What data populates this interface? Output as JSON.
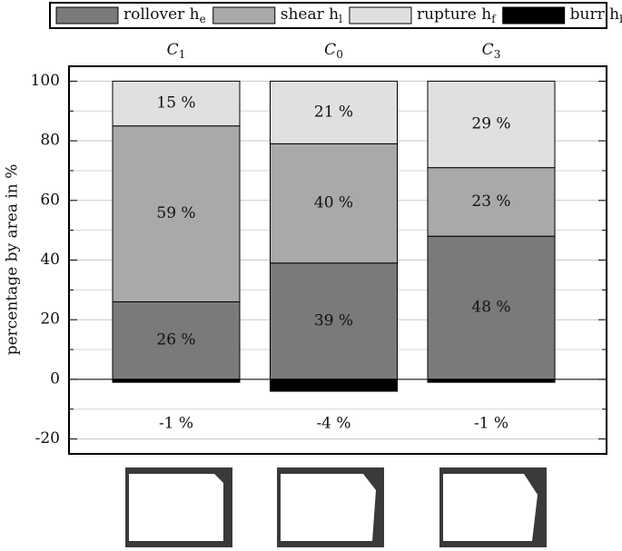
{
  "chart_data": {
    "type": "stacked-bar",
    "categories": [
      "C1",
      "C0",
      "C3"
    ],
    "ylabel": "percentage by area in %",
    "ylim": [
      -25,
      105
    ],
    "yticks": [
      -20,
      0,
      20,
      40,
      60,
      80,
      100
    ],
    "minor_yticks": [
      -10,
      10,
      30,
      50,
      70,
      90
    ],
    "grid": true,
    "legend": "top",
    "series": [
      {
        "name": "rollover he",
        "color": "#7a7a7a",
        "values": [
          26,
          39,
          48
        ],
        "value_labels": [
          "26 %",
          "39 %",
          "48 %"
        ]
      },
      {
        "name": "shear hl",
        "color": "#a9a9a9",
        "values": [
          59,
          40,
          23
        ],
        "value_labels": [
          "59 %",
          "40 %",
          "23 %"
        ]
      },
      {
        "name": "rupture hf",
        "color": "#e0e0e0",
        "values": [
          15,
          21,
          29
        ],
        "value_labels": [
          "15 %",
          "21 %",
          "29 %"
        ]
      },
      {
        "name": "burr hb",
        "color": "#000000",
        "values": [
          -1,
          -4,
          -1
        ],
        "value_labels": [
          "-1 %",
          "-4 %",
          "-1 %"
        ]
      }
    ]
  }
}
